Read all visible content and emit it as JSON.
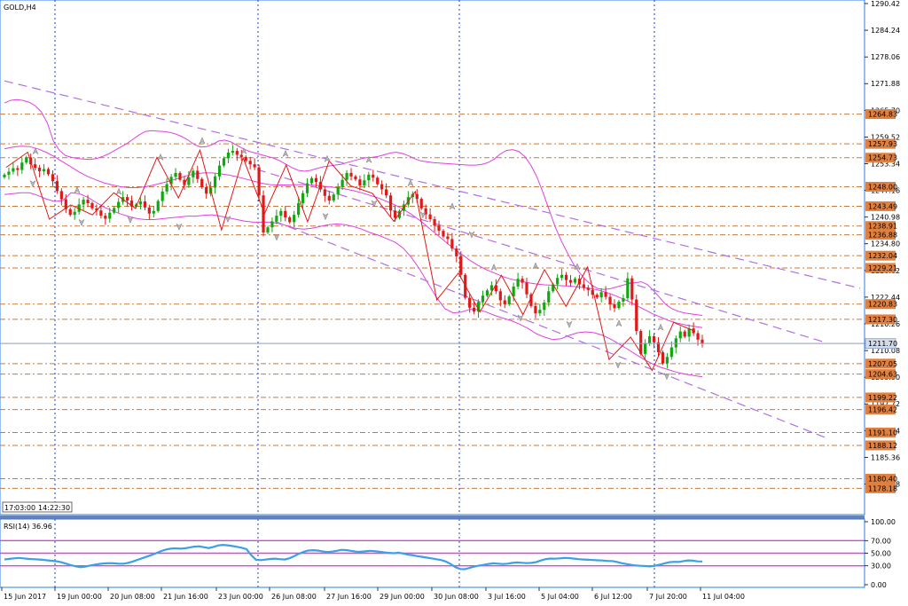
{
  "chart_data": [
    {
      "type": "candlestick",
      "title": "GOLD,H4",
      "ylim": [
        1172.5,
        1290.42
      ],
      "price_ticks": [
        "1290.42",
        "1284.24",
        "1278.06",
        "1271.88",
        "1265.70",
        "1259.52",
        "1253.34",
        "1247.16",
        "1240.98",
        "1234.80",
        "1228.62",
        "1222.44",
        "1216.26",
        "1210.08",
        "1203.90",
        "1197.72",
        "1191.54",
        "1185.36",
        "1179.18"
      ],
      "current_price": "1211.70",
      "level_tags": [
        "1264.83",
        "1257.93",
        "1254.73",
        "1248.00",
        "1243.49",
        "1238.91",
        "1236.88",
        "1232.04",
        "1229.21",
        "1220.83",
        "1217.30",
        "1207.05",
        "1204.63",
        "1199.22",
        "1196.42",
        "1191.10",
        "1188.12",
        "1180.40",
        "1178.18"
      ],
      "time_labels": [
        "15 Jun 2017",
        "19 Jun 00:00",
        "20 Jun 08:00",
        "21 Jun 16:00",
        "23 Jun 00:00",
        "26 Jun 08:00",
        "27 Jun 16:00",
        "29 Jun 00:00",
        "30 Jun 08:00",
        "3 Jul 16:00",
        "5 Jul 04:00",
        "6 Jul 12:00",
        "7 Jul 20:00",
        "11 Jul 04:00"
      ],
      "session_tags": [
        "17:",
        "03:00",
        "14:",
        "22:30"
      ],
      "closes": [
        1250.8,
        1251.5,
        1252.3,
        1251.9,
        1253.6,
        1254.8,
        1253.2,
        1252.4,
        1251.6,
        1252.1,
        1250.9,
        1249.3,
        1247.0,
        1245.1,
        1242.8,
        1241.5,
        1242.2,
        1243.9,
        1245.0,
        1244.2,
        1243.0,
        1242.5,
        1241.3,
        1240.6,
        1242.0,
        1243.1,
        1244.5,
        1245.6,
        1244.8,
        1243.4,
        1243.9,
        1244.6,
        1243.2,
        1241.8,
        1242.4,
        1244.7,
        1246.9,
        1248.6,
        1250.3,
        1251.2,
        1249.6,
        1248.4,
        1250.2,
        1251.7,
        1249.8,
        1247.9,
        1246.4,
        1247.8,
        1250.4,
        1252.9,
        1254.6,
        1255.9,
        1256.3,
        1255.4,
        1254.9,
        1254.0,
        1253.2,
        1252.5,
        1246.0,
        1237.4,
        1238.6,
        1240.0,
        1241.3,
        1242.4,
        1240.9,
        1239.8,
        1241.5,
        1244.2,
        1246.5,
        1248.8,
        1250.0,
        1249.1,
        1247.4,
        1245.9,
        1244.8,
        1246.2,
        1247.9,
        1249.6,
        1251.2,
        1250.4,
        1249.7,
        1248.3,
        1249.5,
        1250.8,
        1250.1,
        1248.6,
        1247.4,
        1246.0,
        1242.5,
        1240.8,
        1242.4,
        1243.9,
        1245.6,
        1246.3,
        1245.2,
        1243.0,
        1241.6,
        1240.5,
        1239.0,
        1237.8,
        1236.5,
        1235.9,
        1233.7,
        1231.9,
        1227.6,
        1222.3,
        1220.0,
        1219.1,
        1221.3,
        1222.8,
        1224.0,
        1225.2,
        1223.8,
        1221.7,
        1220.8,
        1222.6,
        1224.9,
        1226.7,
        1225.8,
        1223.1,
        1220.4,
        1218.7,
        1219.5,
        1221.2,
        1223.8,
        1225.4,
        1226.9,
        1227.6,
        1226.4,
        1225.8,
        1226.7,
        1225.4,
        1224.6,
        1224.1,
        1223.0,
        1222.4,
        1223.6,
        1222.5,
        1220.8,
        1219.9,
        1221.4,
        1222.2,
        1226.8,
        1221.9,
        1214.6,
        1209.3,
        1211.8,
        1213.4,
        1212.0,
        1209.7,
        1207.1,
        1208.6,
        1210.8,
        1212.9,
        1214.5,
        1213.3,
        1215.2,
        1214.1,
        1212.6,
        1211.7
      ],
      "upper_band": [
        1267.4,
        1268.0,
        1268.2,
        1268.0,
        1267.6,
        1266.8,
        1265.4,
        1262.8,
        1258.6,
        1256.4,
        1255.2,
        1254.8,
        1254.5,
        1254.4,
        1254.3,
        1254.5,
        1255.0,
        1255.6,
        1256.4,
        1257.2,
        1258.0,
        1259.0,
        1260.0,
        1260.8,
        1261.0,
        1260.9,
        1260.8,
        1260.6,
        1260.2,
        1259.6,
        1258.8,
        1257.8,
        1257.2,
        1257.3,
        1257.8,
        1258.6,
        1258.8,
        1258.4,
        1257.6,
        1256.8,
        1256.2,
        1255.8,
        1255.4,
        1255.0,
        1254.6,
        1254.0,
        1253.2,
        1252.4,
        1251.8,
        1251.6,
        1251.8,
        1252.2,
        1252.6,
        1252.8,
        1253.0,
        1253.2,
        1253.6,
        1254.0,
        1254.4,
        1254.7,
        1254.8,
        1255.0,
        1255.4,
        1255.8,
        1256.0,
        1255.7,
        1255.2,
        1254.5,
        1254.0,
        1253.8,
        1253.6,
        1253.5,
        1253.4,
        1253.3,
        1253.2,
        1253.1,
        1253.0,
        1253.0,
        1253.2,
        1253.6,
        1254.4,
        1255.6,
        1256.4,
        1256.6,
        1256.2,
        1255.0,
        1253.0,
        1250.2,
        1246.6,
        1242.6,
        1238.6,
        1235.4,
        1232.6,
        1230.0,
        1228.0,
        1226.4,
        1225.2,
        1224.4,
        1224.2,
        1224.4,
        1224.8,
        1225.2,
        1225.6,
        1225.8,
        1226.0,
        1225.4,
        1224.0,
        1222.4,
        1220.8,
        1219.8,
        1219.2,
        1218.8,
        1218.6,
        1218.4,
        1218.2
      ],
      "middle_band": [
        1256.8,
        1257.2,
        1257.4,
        1257.3,
        1256.8,
        1256.0,
        1255.0,
        1253.8,
        1252.6,
        1251.4,
        1250.4,
        1249.6,
        1248.9,
        1248.4,
        1248.0,
        1247.8,
        1247.8,
        1248.0,
        1248.4,
        1248.9,
        1249.4,
        1250.0,
        1250.6,
        1251.0,
        1251.2,
        1251.2,
        1251.0,
        1250.7,
        1250.3,
        1249.8,
        1249.3,
        1248.8,
        1248.5,
        1248.4,
        1248.4,
        1248.5,
        1248.5,
        1248.4,
        1248.2,
        1248.0,
        1247.8,
        1247.5,
        1247.1,
        1246.6,
        1246.0,
        1245.4,
        1244.6,
        1243.8,
        1242.8,
        1241.6,
        1240.2,
        1238.6,
        1237.0,
        1235.4,
        1233.8,
        1232.4,
        1231.0,
        1229.8,
        1228.8,
        1228.0,
        1227.2,
        1226.6,
        1226.2,
        1225.8,
        1225.5,
        1225.3,
        1225.2,
        1225.1,
        1225.0,
        1224.8,
        1224.6,
        1224.3,
        1223.8,
        1223.2,
        1222.4,
        1221.6,
        1220.6,
        1219.6,
        1218.6,
        1217.8,
        1217.0,
        1216.4,
        1216.0,
        1215.7,
        1215.4
      ],
      "lower_band": [
        1246.2,
        1246.4,
        1246.6,
        1246.6,
        1246.0,
        1245.2,
        1244.6,
        1244.8,
        1246.6,
        1246.4,
        1245.6,
        1244.4,
        1243.3,
        1242.4,
        1241.7,
        1241.1,
        1240.6,
        1240.4,
        1240.4,
        1240.6,
        1240.8,
        1241.0,
        1241.2,
        1241.2,
        1241.4,
        1241.5,
        1241.2,
        1240.8,
        1240.4,
        1240.0,
        1239.8,
        1239.8,
        1239.8,
        1239.5,
        1239.0,
        1238.4,
        1238.2,
        1238.4,
        1238.8,
        1239.2,
        1239.4,
        1239.2,
        1238.8,
        1238.2,
        1237.4,
        1236.8,
        1236.0,
        1235.2,
        1233.8,
        1231.6,
        1228.8,
        1225.6,
        1222.4,
        1219.8,
        1218.8,
        1219.0,
        1219.6,
        1219.6,
        1219.0,
        1218.2,
        1217.6,
        1217.0,
        1216.2,
        1215.2,
        1214.0,
        1213.2,
        1212.6,
        1212.8,
        1213.6,
        1214.2,
        1214.4,
        1214.2,
        1213.6,
        1212.7,
        1211.6,
        1210.4,
        1209.2,
        1208.0,
        1207.0,
        1206.2,
        1205.6,
        1205.0,
        1204.6,
        1204.3,
        1204.0
      ],
      "trend_channel_top": [
        [
          1251.6,
          1272.5
        ],
        [
          1212.0,
          1224.5
        ]
      ],
      "trend_channel_bottom": [
        [
          1247.0,
          1252.0
        ],
        [
          1193.0,
          1190.0
        ]
      ],
      "fractal_path": [
        1252.5,
        1256.0,
        1240.5,
        1243.8,
        1241.5,
        1246.6,
        1243.0,
        1254.8,
        1245.4,
        1256.5,
        1238.0,
        1254.7,
        1241.8,
        1253.0,
        1239.9,
        1254.0,
        1248.2,
        1246.5,
        1240.0,
        1246.9,
        1221.8,
        1228.0,
        1219.0,
        1227.5,
        1218.4,
        1228.8,
        1220.3,
        1229.4,
        1208.0,
        1213.2,
        1205.5,
        1216.6,
        1214.5
      ],
      "up_fractals": [
        1256.4,
        1247.4,
        1247.0,
        1255.0,
        1258.8,
        1256.4,
        1255.8,
        1254.6,
        1254.4,
        1249.0,
        1243.6,
        1229.5,
        1229.8,
        1229.6,
        1216.5,
        1215.6
      ],
      "down_fractals": [
        1248.6,
        1239.6,
        1240.2,
        1238.6,
        1240.4,
        1236.2,
        1241.0,
        1244.0,
        1241.4,
        1236.8,
        1217.5,
        1216.0,
        1206.6,
        1204.0
      ]
    },
    {
      "type": "line",
      "title": "RSI(14) 36.96",
      "ylim": [
        0,
        100
      ],
      "ticks": [
        "100.00",
        "70.00",
        "50.00",
        "30.00",
        "0.00"
      ],
      "levels": [
        70,
        50,
        30
      ],
      "values": [
        40.2,
        41.0,
        41.8,
        42.5,
        41.9,
        41.0,
        40.6,
        40.2,
        39.6,
        38.8,
        38.0,
        37.2,
        35.6,
        33.4,
        31.0,
        29.2,
        27.8,
        28.6,
        30.4,
        31.8,
        33.0,
        33.8,
        34.2,
        34.0,
        33.4,
        33.2,
        34.6,
        36.8,
        39.4,
        42.0,
        44.6,
        47.2,
        50.2,
        53.4,
        55.8,
        57.2,
        57.8,
        57.2,
        57.8,
        59.0,
        60.4,
        61.0,
        59.6,
        58.2,
        60.0,
        62.2,
        63.2,
        62.6,
        61.4,
        60.2,
        58.6,
        56.4,
        46.8,
        39.6,
        39.0,
        39.8,
        40.8,
        41.4,
        40.6,
        40.0,
        41.8,
        45.2,
        49.0,
        52.0,
        54.2,
        54.8,
        54.2,
        53.0,
        51.8,
        52.6,
        53.8,
        55.4,
        55.0,
        53.8,
        52.6,
        52.2,
        53.0,
        53.8,
        53.2,
        52.4,
        51.2,
        50.6,
        50.0,
        50.8,
        49.6,
        47.6,
        46.8,
        45.4,
        44.2,
        43.0,
        41.8,
        40.4,
        39.2,
        36.8,
        32.8,
        27.8,
        25.0,
        24.6,
        26.8,
        28.8,
        30.4,
        31.6,
        33.0,
        34.0,
        33.4,
        32.8,
        33.4,
        34.6,
        35.4,
        34.8,
        34.2,
        34.6,
        35.8,
        38.4,
        40.6,
        41.6,
        41.2,
        41.8,
        42.6,
        42.2,
        41.4,
        40.6,
        40.0,
        39.6,
        39.2,
        38.8,
        38.4,
        37.8,
        37.6,
        36.2,
        34.2,
        32.8,
        31.6,
        30.6,
        30.0,
        29.6,
        29.0,
        30.0,
        31.8,
        33.6,
        35.6,
        36.4,
        36.0,
        37.4,
        38.6,
        38.2,
        37.0,
        36.96
      ]
    }
  ]
}
